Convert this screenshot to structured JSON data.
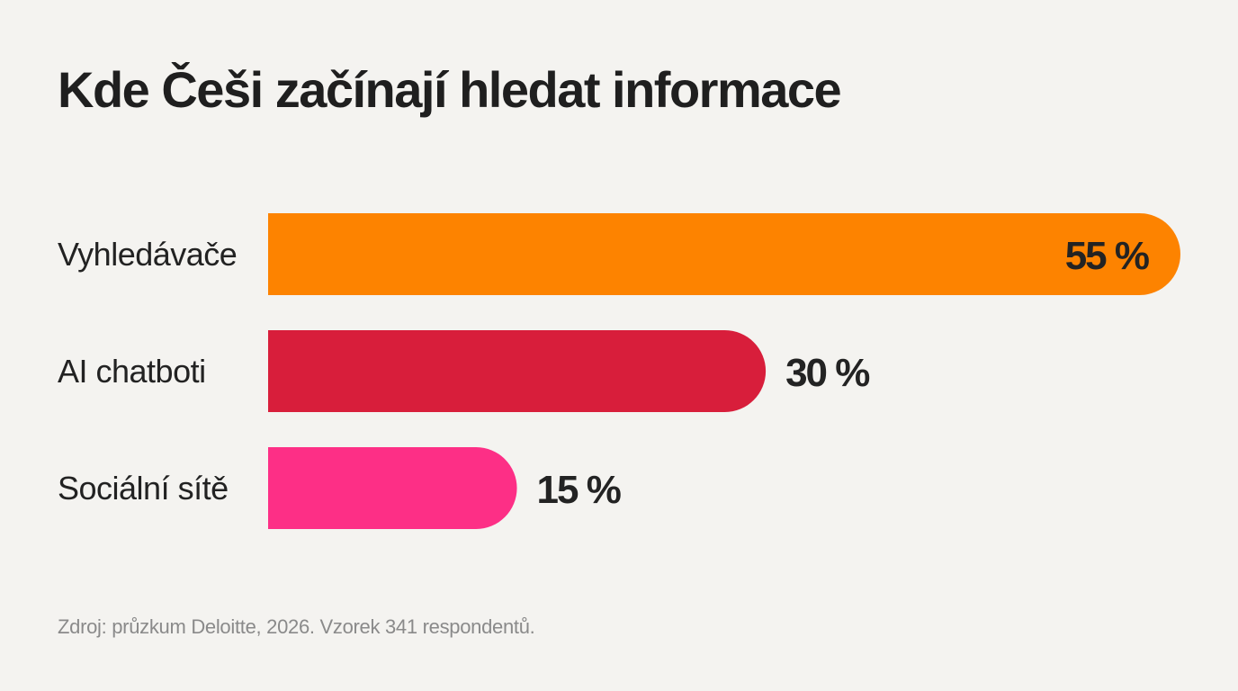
{
  "source": "Zdroj: průzkum Deloitte, 2026. Vzorek 341 respondentů.",
  "chart_data": {
    "type": "bar",
    "orientation": "horizontal",
    "title": "Kde Češi začínají hledat informace",
    "categories": [
      "Vyhledávače",
      "AI chatboti",
      "Sociální sítě"
    ],
    "values": [
      55,
      30,
      15
    ],
    "value_labels": [
      "55 %",
      "30 %",
      "15 %"
    ],
    "colors": [
      "#fd8300",
      "#d81e3b",
      "#fd2f86"
    ],
    "xlim": [
      0,
      55
    ],
    "grid": false,
    "legend": "none"
  }
}
